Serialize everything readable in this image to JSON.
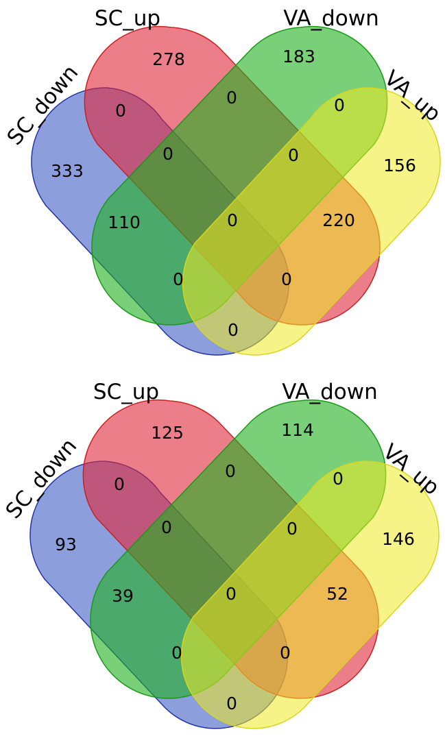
{
  "colors": {
    "SC_down": "#3f5ec3",
    "SC_up": "#e0283a",
    "VA_down": "#1fb11f",
    "VA_up": "#eeea25"
  },
  "diagrams": [
    {
      "labels": {
        "sc_down": "SC_down",
        "sc_up": "SC_up",
        "va_down": "VA_down",
        "va_up": "VA_up"
      },
      "counts": {
        "sc_down_only": "333",
        "sc_up_only": "278",
        "va_down_only": "183",
        "va_up_only": "156",
        "sc_down_sc_up": "0",
        "sc_up_va_down": "0",
        "va_down_va_up": "0",
        "sc_down_sc_up_va_down": "0",
        "sc_up_va_down_va_up": "0",
        "sc_down_va_down": "110",
        "sc_up_va_up": "220",
        "all_four": "0",
        "sc_down_va_down_va_up": "0",
        "sc_down_sc_up_va_up": "0",
        "sc_down_va_up": "0"
      }
    },
    {
      "labels": {
        "sc_down": "SC_down",
        "sc_up": "SC_up",
        "va_down": "VA_down",
        "va_up": "VA_up"
      },
      "counts": {
        "sc_down_only": "93",
        "sc_up_only": "125",
        "va_down_only": "114",
        "va_up_only": "146",
        "sc_down_sc_up": "0",
        "sc_up_va_down": "0",
        "va_down_va_up": "0",
        "sc_down_sc_up_va_down": "0",
        "sc_up_va_down_va_up": "0",
        "sc_down_va_down": "39",
        "sc_up_va_up": "52",
        "all_four": "0",
        "sc_down_va_down_va_up": "0",
        "sc_down_sc_up_va_up": "0",
        "sc_down_va_up": "0"
      }
    }
  ]
}
